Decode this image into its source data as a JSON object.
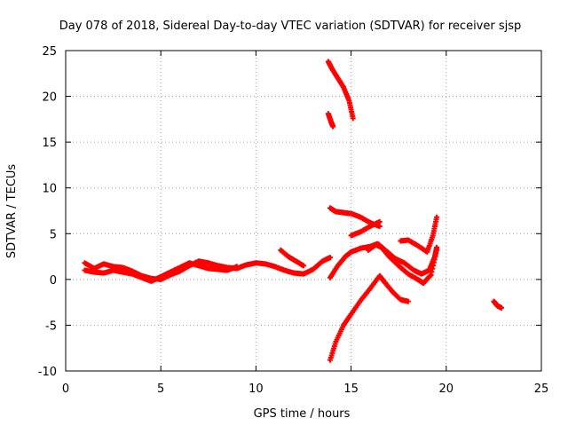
{
  "chart_data": {
    "type": "scatter",
    "title": "Day 078 of 2018, Sidereal Day-to-day VTEC variation (SDTVAR) for receiver sjsp",
    "xlabel": "GPS time / hours",
    "ylabel": "SDTVAR / TECUs",
    "xlim": [
      0,
      25
    ],
    "ylim": [
      -10,
      25
    ],
    "xticks": [
      0,
      5,
      10,
      15,
      20,
      25
    ],
    "yticks": [
      -10,
      -5,
      0,
      5,
      10,
      15,
      20,
      25
    ],
    "grid": true,
    "marker": "+",
    "color": "#ff0000",
    "series": [
      {
        "values": [
          [
            1.0,
            1.8
          ],
          [
            1.5,
            1.2
          ],
          [
            2.0,
            1.7
          ],
          [
            2.5,
            1.4
          ],
          [
            3.0,
            1.3
          ],
          [
            3.5,
            0.9
          ],
          [
            4.0,
            0.4
          ],
          [
            4.5,
            0.1
          ],
          [
            5.0,
            0.0
          ],
          [
            5.5,
            0.5
          ],
          [
            6.0,
            0.9
          ],
          [
            6.5,
            1.5
          ],
          [
            7.0,
            2.0
          ],
          [
            7.5,
            1.8
          ],
          [
            8.0,
            1.5
          ],
          [
            8.5,
            1.3
          ],
          [
            9.0,
            1.2
          ],
          [
            9.5,
            1.6
          ],
          [
            10.0,
            1.8
          ],
          [
            10.5,
            1.7
          ],
          [
            11.0,
            1.4
          ],
          [
            11.5,
            1.0
          ],
          [
            12.0,
            0.7
          ],
          [
            12.5,
            0.6
          ],
          [
            13.0,
            1.1
          ],
          [
            13.5,
            2.0
          ],
          [
            13.9,
            2.4
          ]
        ]
      },
      {
        "values": [
          [
            1.0,
            1.0
          ],
          [
            1.5,
            0.8
          ],
          [
            2.0,
            0.7
          ],
          [
            2.5,
            1.0
          ],
          [
            3.0,
            0.8
          ],
          [
            3.5,
            0.6
          ],
          [
            4.0,
            0.2
          ],
          [
            4.5,
            -0.2
          ],
          [
            5.0,
            0.3
          ],
          [
            5.5,
            0.8
          ],
          [
            6.0,
            1.3
          ],
          [
            6.5,
            1.8
          ],
          [
            7.0,
            1.5
          ],
          [
            7.5,
            1.2
          ],
          [
            8.0,
            1.1
          ],
          [
            8.5,
            1.0
          ],
          [
            9.0,
            1.4
          ]
        ]
      },
      {
        "values": [
          [
            11.3,
            3.2
          ],
          [
            11.7,
            2.5
          ],
          [
            12.1,
            2.0
          ],
          [
            12.5,
            1.5
          ]
        ]
      },
      {
        "values": [
          [
            13.8,
            23.8
          ],
          [
            14.0,
            23.0
          ],
          [
            14.3,
            22.0
          ],
          [
            14.6,
            21.0
          ],
          [
            14.9,
            19.5
          ],
          [
            15.1,
            17.6
          ]
        ]
      },
      {
        "values": [
          [
            13.8,
            18.1
          ],
          [
            13.95,
            17.2
          ],
          [
            14.05,
            16.7
          ]
        ]
      },
      {
        "values": [
          [
            13.9,
            7.8
          ],
          [
            14.2,
            7.4
          ],
          [
            14.6,
            7.3
          ],
          [
            15.0,
            7.2
          ],
          [
            15.5,
            6.8
          ],
          [
            16.0,
            6.2
          ],
          [
            16.5,
            5.8
          ]
        ]
      },
      {
        "values": [
          [
            15.0,
            4.8
          ],
          [
            15.5,
            5.2
          ],
          [
            16.0,
            5.8
          ],
          [
            16.5,
            6.3
          ]
        ]
      },
      {
        "values": [
          [
            13.9,
            0.2
          ],
          [
            14.3,
            1.5
          ],
          [
            14.7,
            2.5
          ],
          [
            15.0,
            3.0
          ],
          [
            15.5,
            3.4
          ],
          [
            16.0,
            3.6
          ],
          [
            16.4,
            3.9
          ],
          [
            16.8,
            3.2
          ],
          [
            17.3,
            2.3
          ],
          [
            17.8,
            1.8
          ],
          [
            18.3,
            1.0
          ],
          [
            18.7,
            0.6
          ],
          [
            19.1,
            1.0
          ],
          [
            19.4,
            2.5
          ],
          [
            19.5,
            3.5
          ]
        ]
      },
      {
        "values": [
          [
            15.9,
            3.2
          ],
          [
            16.3,
            3.8
          ],
          [
            16.6,
            3.5
          ],
          [
            17.0,
            2.5
          ],
          [
            17.5,
            1.5
          ],
          [
            18.0,
            0.6
          ],
          [
            18.5,
            0.0
          ],
          [
            18.8,
            -0.4
          ],
          [
            19.2,
            0.5
          ],
          [
            19.5,
            3.2
          ]
        ]
      },
      {
        "values": [
          [
            17.6,
            4.2
          ],
          [
            18.0,
            4.3
          ],
          [
            18.5,
            3.7
          ],
          [
            19.0,
            3.0
          ],
          [
            19.3,
            4.8
          ],
          [
            19.5,
            6.8
          ]
        ]
      },
      {
        "values": [
          [
            13.9,
            -8.8
          ],
          [
            14.2,
            -6.8
          ],
          [
            14.6,
            -5.0
          ],
          [
            15.0,
            -3.8
          ],
          [
            15.5,
            -2.3
          ],
          [
            16.0,
            -1.0
          ],
          [
            16.5,
            0.4
          ],
          [
            16.8,
            -0.4
          ],
          [
            17.2,
            -1.4
          ],
          [
            17.6,
            -2.2
          ],
          [
            18.0,
            -2.4
          ]
        ]
      },
      {
        "values": [
          [
            22.5,
            -2.4
          ],
          [
            22.7,
            -2.9
          ],
          [
            22.9,
            -3.1
          ]
        ]
      }
    ]
  }
}
